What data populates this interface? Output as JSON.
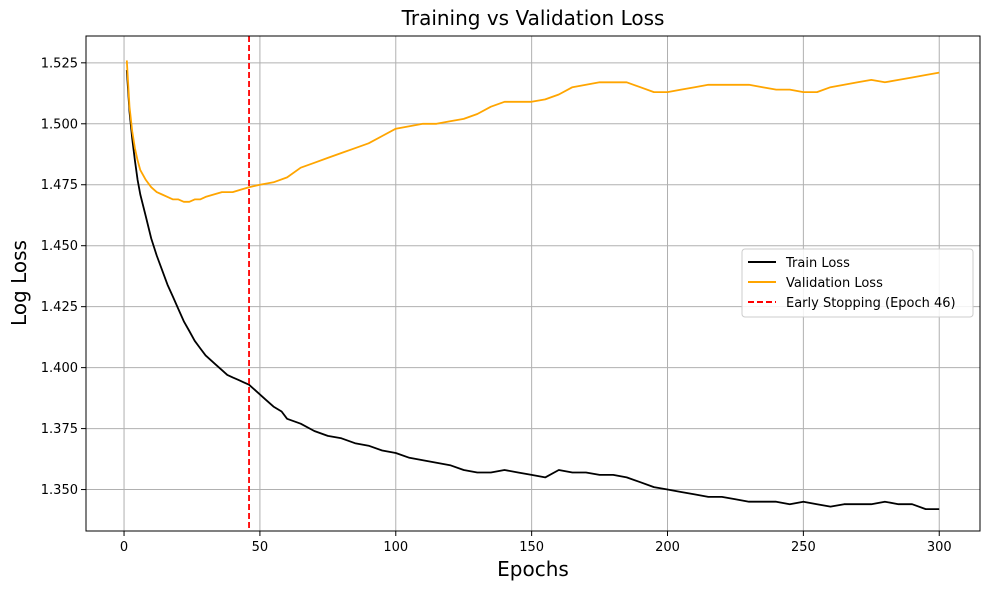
{
  "chart_data": {
    "type": "line",
    "title": "Training vs Validation Loss",
    "xlabel": "Epochs",
    "ylabel": "Log Loss",
    "xlim": [
      -14,
      315
    ],
    "ylim": [
      1.333,
      1.536
    ],
    "x_ticks": [
      0,
      50,
      100,
      150,
      200,
      250,
      300
    ],
    "x_tick_labels": [
      "0",
      "50",
      "100",
      "150",
      "200",
      "250",
      "300"
    ],
    "y_ticks": [
      1.35,
      1.375,
      1.4,
      1.425,
      1.45,
      1.475,
      1.5,
      1.525
    ],
    "y_tick_labels": [
      "1.350",
      "1.375",
      "1.400",
      "1.425",
      "1.450",
      "1.475",
      "1.500",
      "1.525"
    ],
    "grid": true,
    "legend_position": "center-right",
    "series": [
      {
        "name": "Train Loss",
        "color": "#000000",
        "style": "solid",
        "x": [
          1,
          2,
          3,
          4,
          5,
          6,
          8,
          10,
          12,
          14,
          16,
          18,
          20,
          22,
          24,
          26,
          28,
          30,
          32,
          34,
          36,
          38,
          40,
          42,
          44,
          46,
          48,
          50,
          52,
          55,
          58,
          60,
          65,
          70,
          75,
          80,
          85,
          90,
          95,
          100,
          105,
          110,
          115,
          120,
          125,
          130,
          135,
          140,
          145,
          150,
          155,
          160,
          165,
          170,
          175,
          180,
          185,
          190,
          195,
          200,
          205,
          210,
          215,
          220,
          225,
          230,
          235,
          240,
          245,
          250,
          255,
          260,
          265,
          270,
          275,
          280,
          285,
          290,
          295,
          300
        ],
        "y": [
          1.522,
          1.505,
          1.494,
          1.485,
          1.477,
          1.471,
          1.462,
          1.453,
          1.446,
          1.44,
          1.434,
          1.429,
          1.424,
          1.419,
          1.415,
          1.411,
          1.408,
          1.405,
          1.403,
          1.401,
          1.399,
          1.397,
          1.396,
          1.395,
          1.394,
          1.393,
          1.391,
          1.389,
          1.387,
          1.384,
          1.382,
          1.379,
          1.377,
          1.374,
          1.372,
          1.371,
          1.369,
          1.368,
          1.366,
          1.365,
          1.363,
          1.362,
          1.361,
          1.36,
          1.358,
          1.357,
          1.357,
          1.358,
          1.357,
          1.356,
          1.355,
          1.358,
          1.357,
          1.357,
          1.356,
          1.356,
          1.355,
          1.353,
          1.351,
          1.35,
          1.349,
          1.348,
          1.347,
          1.347,
          1.346,
          1.345,
          1.345,
          1.345,
          1.344,
          1.345,
          1.344,
          1.343,
          1.344,
          1.344,
          1.344,
          1.345,
          1.344,
          1.344,
          1.342,
          1.342
        ]
      },
      {
        "name": "Validation Loss",
        "color": "#ffa500",
        "style": "solid",
        "x": [
          1,
          2,
          3,
          4,
          5,
          6,
          8,
          10,
          12,
          14,
          16,
          18,
          20,
          22,
          24,
          26,
          28,
          30,
          33,
          36,
          40,
          43,
          46,
          50,
          55,
          60,
          65,
          70,
          75,
          80,
          85,
          90,
          95,
          100,
          105,
          110,
          115,
          120,
          125,
          130,
          135,
          140,
          145,
          150,
          155,
          160,
          165,
          170,
          175,
          180,
          185,
          190,
          195,
          200,
          205,
          210,
          215,
          220,
          225,
          230,
          235,
          240,
          245,
          250,
          255,
          260,
          265,
          270,
          275,
          280,
          285,
          290,
          295,
          300
        ],
        "y": [
          1.526,
          1.507,
          1.497,
          1.49,
          1.485,
          1.481,
          1.477,
          1.474,
          1.472,
          1.471,
          1.47,
          1.469,
          1.469,
          1.468,
          1.468,
          1.469,
          1.469,
          1.47,
          1.471,
          1.472,
          1.472,
          1.473,
          1.474,
          1.475,
          1.476,
          1.478,
          1.482,
          1.484,
          1.486,
          1.488,
          1.49,
          1.492,
          1.495,
          1.498,
          1.499,
          1.5,
          1.5,
          1.501,
          1.502,
          1.504,
          1.507,
          1.509,
          1.509,
          1.509,
          1.51,
          1.512,
          1.515,
          1.516,
          1.517,
          1.517,
          1.517,
          1.515,
          1.513,
          1.513,
          1.514,
          1.515,
          1.516,
          1.516,
          1.516,
          1.516,
          1.515,
          1.514,
          1.514,
          1.513,
          1.513,
          1.515,
          1.516,
          1.517,
          1.518,
          1.517,
          1.518,
          1.519,
          1.52,
          1.521
        ]
      }
    ],
    "reference_lines": [
      {
        "name": "Early Stopping (Epoch 46)",
        "orientation": "vertical",
        "x": 46,
        "color": "#ff0000",
        "style": "dashed"
      }
    ],
    "legend": [
      "Train Loss",
      "Validation Loss",
      "Early Stopping (Epoch 46)"
    ]
  }
}
